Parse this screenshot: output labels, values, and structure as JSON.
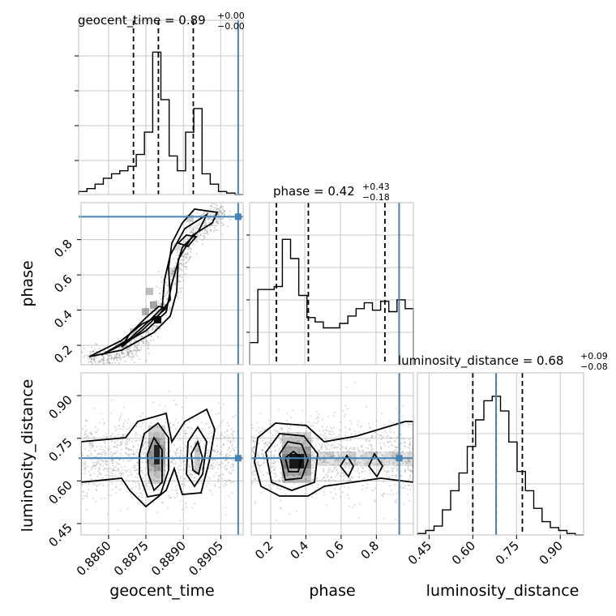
{
  "chart_data": {
    "type": "corner",
    "truth_color": "#4682b4",
    "parameters": [
      {
        "name": "geocent_time",
        "axis_label": "geocent_time",
        "title_main": "geocent_time = 0.89",
        "title_plus": "+0.00",
        "title_minus": "−0.00",
        "range": [
          0.8848,
          0.8914
        ],
        "ticks": [
          0.886,
          0.8875,
          0.889,
          0.8905
        ],
        "tick_labels": [
          "0.8860",
          "0.8875",
          "0.8890",
          "0.8905"
        ],
        "quantiles": [
          0.887,
          0.888,
          0.8894
        ],
        "truth": 0.8912,
        "hist": [
          0.02,
          0.04,
          0.07,
          0.11,
          0.14,
          0.16,
          0.19,
          0.27,
          0.42,
          0.96,
          0.64,
          0.26,
          0.16,
          0.42,
          0.58,
          0.14,
          0.07,
          0.02,
          0.01,
          0.0
        ]
      },
      {
        "name": "phase",
        "axis_label": "phase",
        "title_main": "phase = 0.42",
        "title_plus": "+0.43",
        "title_minus": "−0.18",
        "range": [
          0.09,
          1.01
        ],
        "ticks": [
          0.2,
          0.4,
          0.6,
          0.8
        ],
        "tick_labels": [
          "0.2",
          "0.4",
          "0.6",
          "0.8"
        ],
        "quantiles": [
          0.24,
          0.42,
          0.85
        ],
        "truth": 0.93,
        "hist": [
          0.15,
          0.51,
          0.51,
          0.53,
          0.85,
          0.72,
          0.47,
          0.32,
          0.29,
          0.25,
          0.25,
          0.28,
          0.33,
          0.38,
          0.42,
          0.37,
          0.43,
          0.36,
          0.44,
          0.38
        ]
      },
      {
        "name": "luminosity_distance",
        "axis_label": "luminosity_distance",
        "title_main": "luminosity_distance = 0.68",
        "title_plus": "+0.09",
        "title_minus": "−0.08",
        "range": [
          0.41,
          0.98
        ],
        "ticks": [
          0.45,
          0.6,
          0.75,
          0.9
        ],
        "tick_labels": [
          "0.45",
          "0.60",
          "0.75",
          "0.90"
        ],
        "quantiles": [
          0.6,
          0.68,
          0.77
        ],
        "truth": 0.68,
        "hist": [
          0.01,
          0.03,
          0.06,
          0.17,
          0.3,
          0.42,
          0.6,
          0.78,
          0.91,
          0.94,
          0.84,
          0.63,
          0.43,
          0.3,
          0.18,
          0.09,
          0.05,
          0.03,
          0.01,
          0.0
        ]
      }
    ],
    "grid": true
  }
}
